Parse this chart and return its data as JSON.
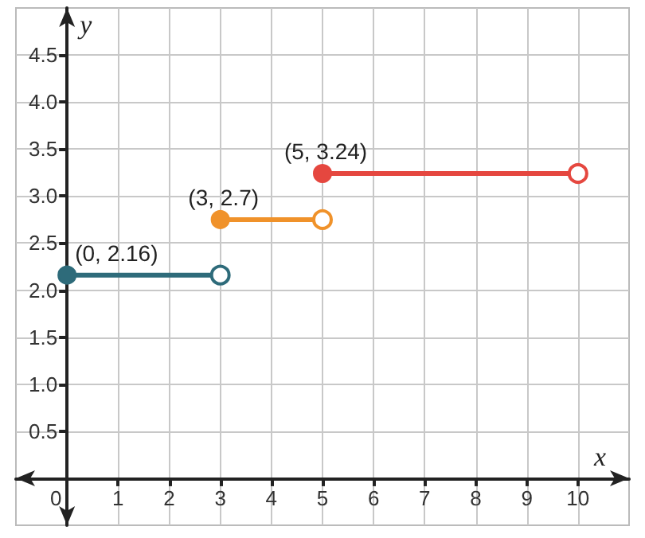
{
  "chart_data": {
    "type": "line",
    "xlabel": "x",
    "ylabel": "y",
    "xlim": [
      -1,
      11
    ],
    "ylim": [
      -0.5,
      5
    ],
    "xticks": [
      0,
      1,
      2,
      3,
      4,
      5,
      6,
      7,
      8,
      9,
      10
    ],
    "yticks": [
      {
        "value": 0.5,
        "label": "0.5"
      },
      {
        "value": 1,
        "label": "1.0"
      },
      {
        "value": 1.5,
        "label": "1.5"
      },
      {
        "value": 2,
        "label": "2.0"
      },
      {
        "value": 2.5,
        "label": "2.5"
      },
      {
        "value": 3,
        "label": "3.0"
      },
      {
        "value": 3.5,
        "label": "3.5"
      },
      {
        "value": 4,
        "label": "4.0"
      },
      {
        "value": 4.5,
        "label": "4.5"
      }
    ],
    "grid": true,
    "marker": "circle",
    "line_style": "solid",
    "series": [
      {
        "color": "#2e6b7a",
        "x": [
          0,
          3
        ],
        "values": [
          2.16,
          2.16
        ]
      },
      {
        "color": "#f0922a",
        "x": [
          3,
          5
        ],
        "values": [
          2.75,
          2.75
        ]
      },
      {
        "color": "#e5473f",
        "x": [
          5,
          10
        ],
        "values": [
          3.24,
          3.24
        ]
      }
    ],
    "annotations": [
      {
        "text": "(0, 2.16)",
        "x": 0,
        "y": 2.16
      },
      {
        "text": "(3, 2.7)",
        "x": 3,
        "y": 2.75
      },
      {
        "text": "(5, 3.24)",
        "x": 5,
        "y": 3.24
      }
    ]
  }
}
